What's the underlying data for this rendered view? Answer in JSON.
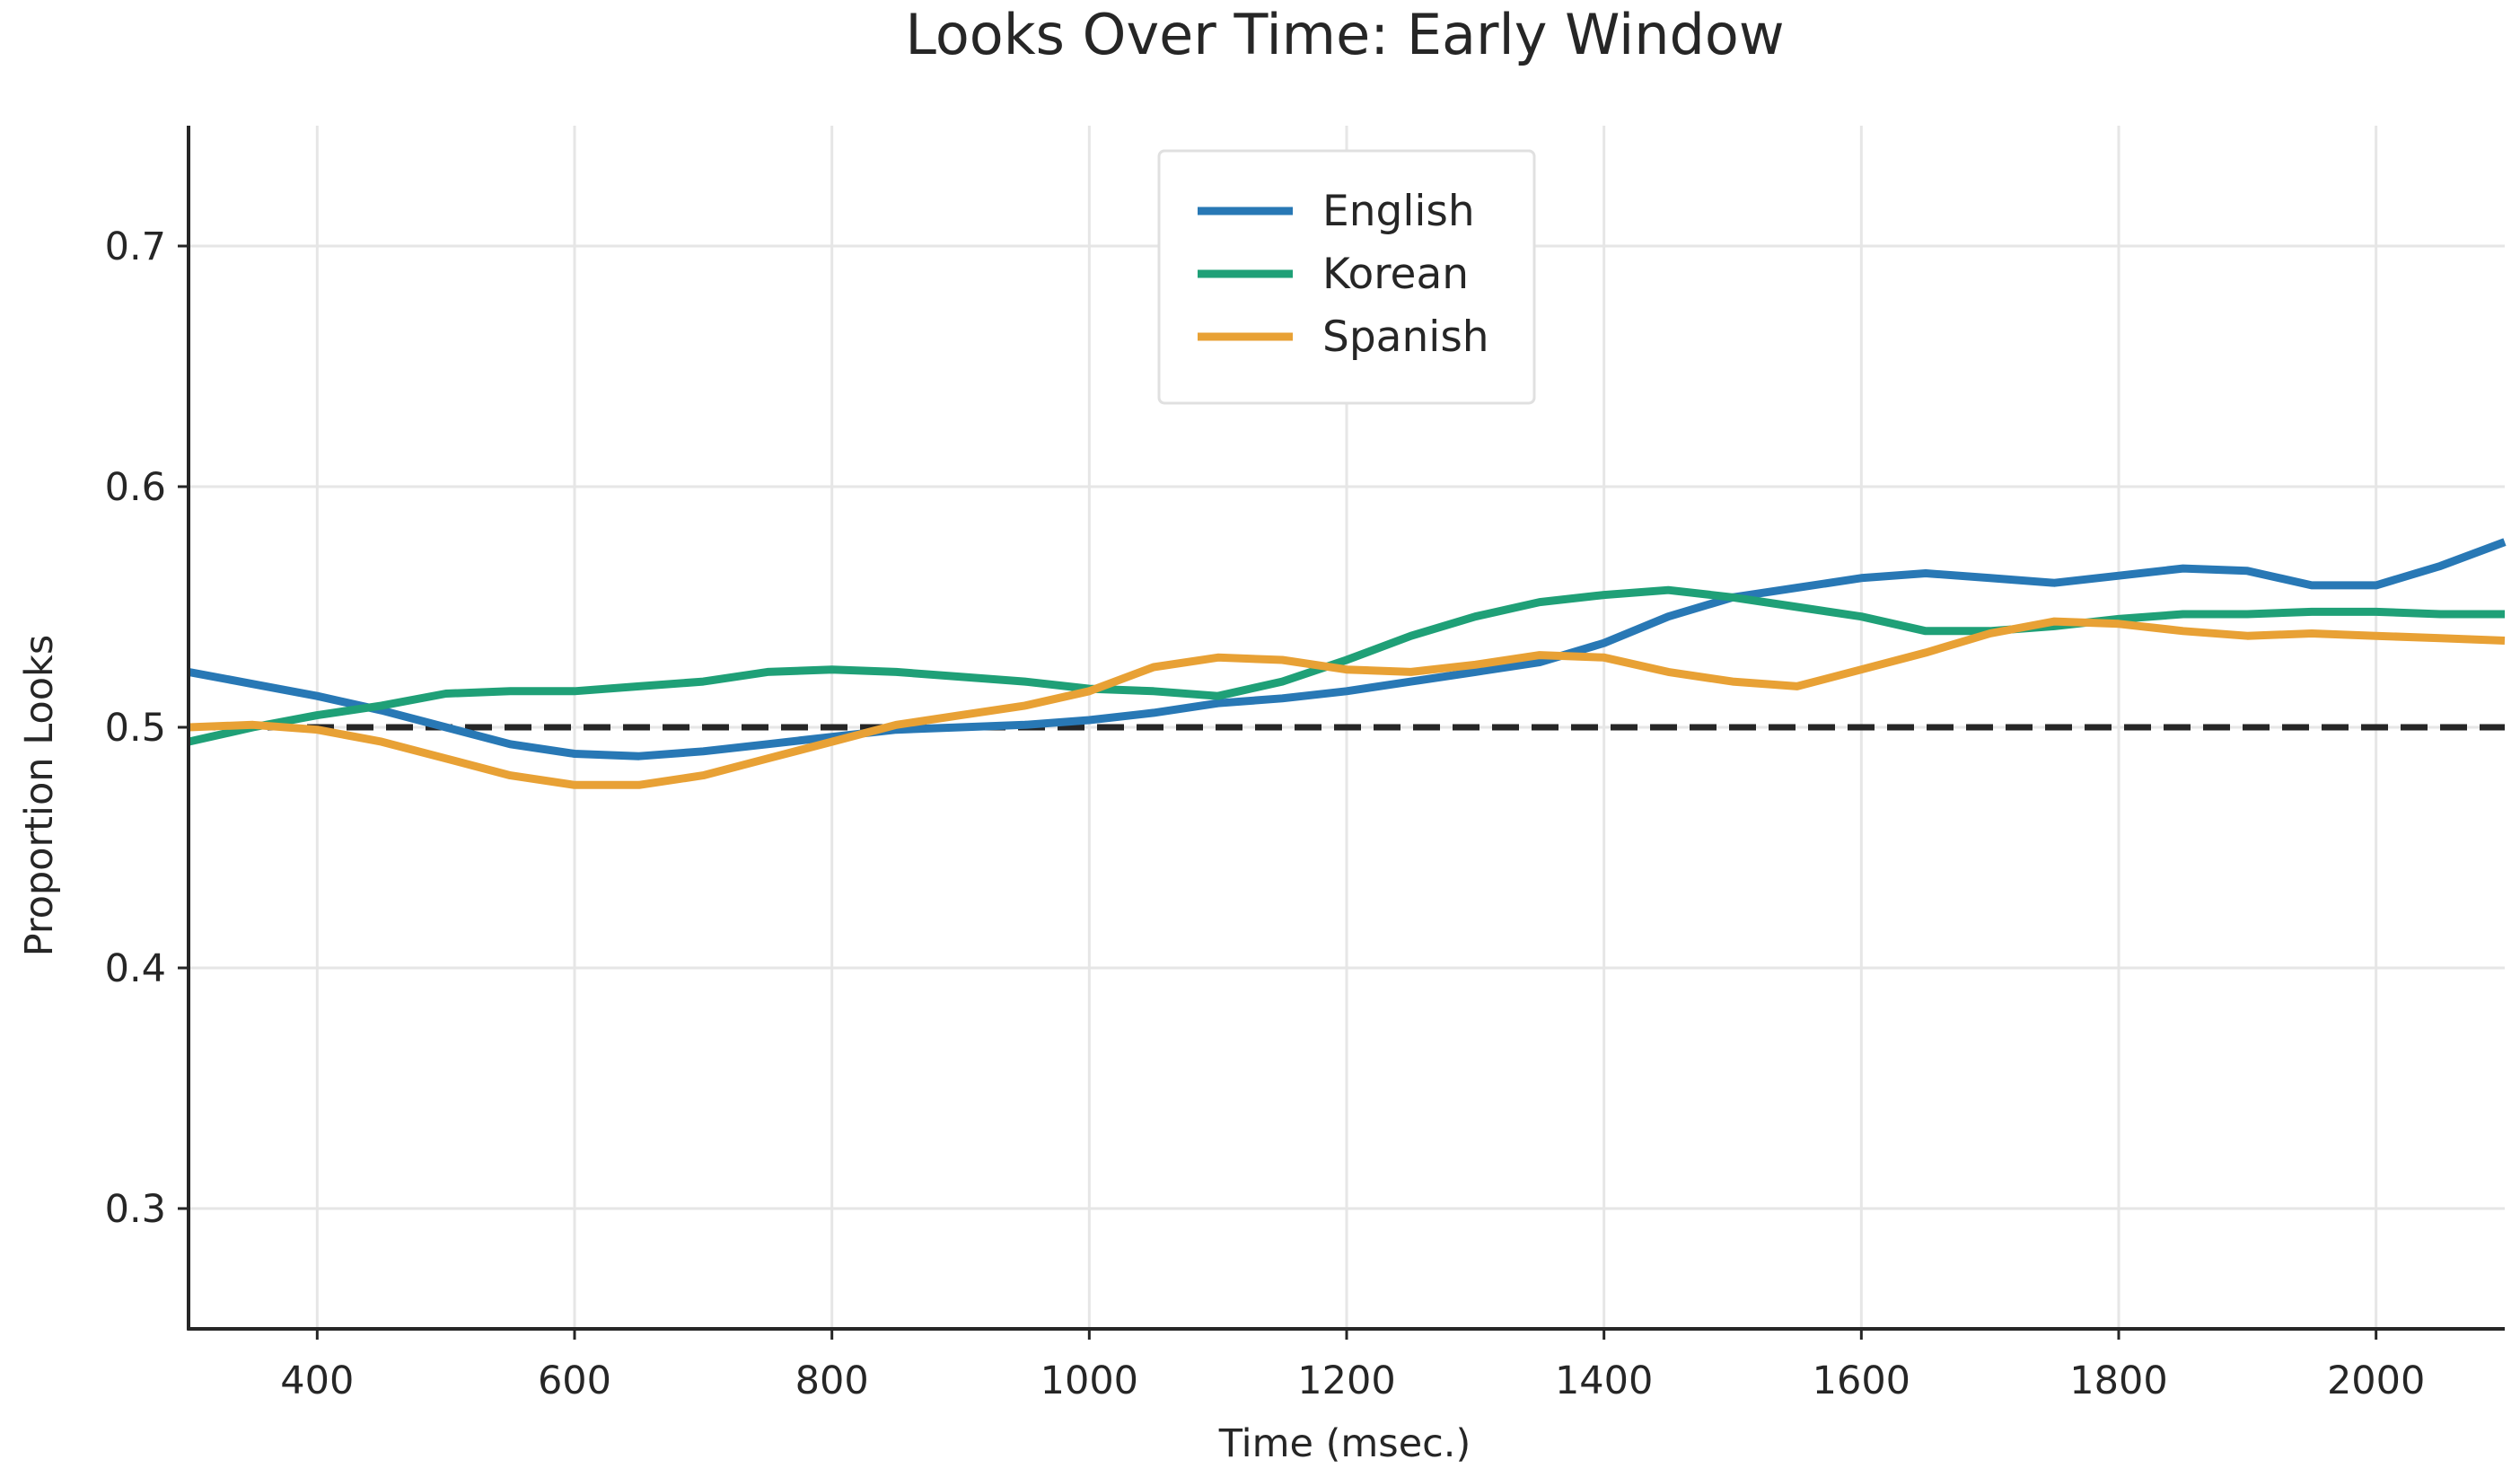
{
  "chart_data": {
    "type": "line",
    "title": "Looks Over Time: Early Window",
    "xlabel": "Time (msec.)",
    "ylabel": "Proportion Looks",
    "xlim": [
      300,
      2100
    ],
    "ylim": [
      0.25,
      0.75
    ],
    "x_ticks": [
      400,
      600,
      800,
      1000,
      1200,
      1400,
      1600,
      1800,
      2000
    ],
    "y_ticks": [
      0.3,
      0.4,
      0.5,
      0.6,
      0.7
    ],
    "x_tick_labels": [
      "400",
      "600",
      "800",
      "1000",
      "1200",
      "1400",
      "1600",
      "1800",
      "2000"
    ],
    "y_tick_labels": [
      "0.3",
      "0.4",
      "0.5",
      "0.6",
      "0.7"
    ],
    "grid": true,
    "legend_position": "top-center",
    "reference_line": {
      "y": 0.5,
      "style": "dashed",
      "color": "#262626"
    },
    "x": [
      300,
      350,
      400,
      450,
      500,
      550,
      600,
      650,
      700,
      750,
      800,
      850,
      900,
      950,
      1000,
      1050,
      1100,
      1150,
      1200,
      1250,
      1300,
      1350,
      1400,
      1450,
      1500,
      1550,
      1600,
      1650,
      1700,
      1750,
      1800,
      1850,
      1900,
      1950,
      2000,
      2050,
      2100
    ],
    "series": [
      {
        "name": "English",
        "color": "#2878b5",
        "values": [
          0.523,
          0.518,
          0.513,
          0.507,
          0.5,
          0.493,
          0.489,
          0.488,
          0.49,
          0.493,
          0.496,
          0.499,
          0.5,
          0.501,
          0.503,
          0.506,
          0.51,
          0.512,
          0.515,
          0.519,
          0.523,
          0.527,
          0.535,
          0.546,
          0.554,
          0.558,
          0.562,
          0.564,
          0.562,
          0.56,
          0.563,
          0.566,
          0.565,
          0.559,
          0.559,
          0.567,
          0.577
        ]
      },
      {
        "name": "Korean",
        "color": "#1fa077",
        "values": [
          0.494,
          0.5,
          0.505,
          0.509,
          0.514,
          0.515,
          0.515,
          0.517,
          0.519,
          0.523,
          0.524,
          0.523,
          0.521,
          0.519,
          0.516,
          0.515,
          0.513,
          0.519,
          0.528,
          0.538,
          0.546,
          0.552,
          0.555,
          0.557,
          0.554,
          0.55,
          0.546,
          0.54,
          0.54,
          0.542,
          0.545,
          0.547,
          0.547,
          0.548,
          0.548,
          0.547,
          0.547
        ]
      },
      {
        "name": "Spanish",
        "color": "#e8a135",
        "values": [
          0.5,
          0.501,
          0.499,
          0.494,
          0.487,
          0.48,
          0.476,
          0.476,
          0.48,
          0.487,
          0.494,
          0.501,
          0.505,
          0.509,
          0.515,
          0.525,
          0.529,
          0.528,
          0.524,
          0.523,
          0.526,
          0.53,
          0.529,
          0.523,
          0.519,
          0.517,
          0.524,
          0.531,
          0.539,
          0.544,
          0.543,
          0.54,
          0.538,
          0.539,
          0.538,
          0.537,
          0.536
        ]
      }
    ]
  }
}
